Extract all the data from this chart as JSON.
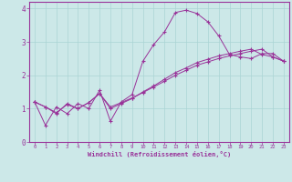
{
  "xlabel": "Windchill (Refroidissement éolien,°C)",
  "xlim": [
    -0.5,
    23.5
  ],
  "ylim": [
    0,
    4.2
  ],
  "yticks": [
    0,
    1,
    2,
    3,
    4
  ],
  "xticks": [
    0,
    1,
    2,
    3,
    4,
    5,
    6,
    7,
    8,
    9,
    10,
    11,
    12,
    13,
    14,
    15,
    16,
    17,
    18,
    19,
    20,
    21,
    22,
    23
  ],
  "bg_color": "#cce8e8",
  "line_color": "#993399",
  "grid_color": "#aad4d4",
  "line1_x": [
    0,
    1,
    2,
    3,
    4,
    5,
    6,
    7,
    8,
    9,
    10,
    11,
    12,
    13,
    14,
    15,
    16,
    17,
    18,
    19,
    20,
    21,
    22,
    23
  ],
  "line1_y": [
    1.2,
    0.5,
    1.05,
    0.85,
    1.15,
    1.0,
    1.55,
    0.62,
    1.2,
    1.42,
    2.42,
    2.92,
    3.3,
    3.88,
    3.95,
    3.85,
    3.6,
    3.18,
    2.62,
    2.55,
    2.5,
    2.65,
    2.65,
    2.42
  ],
  "line2_x": [
    0,
    1,
    2,
    3,
    4,
    5,
    6,
    7,
    8,
    9,
    10,
    11,
    12,
    13,
    14,
    15,
    16,
    17,
    18,
    19,
    20,
    21,
    22,
    23
  ],
  "line2_y": [
    1.2,
    1.05,
    0.85,
    1.15,
    1.0,
    1.18,
    1.45,
    1.0,
    1.15,
    1.3,
    1.5,
    1.68,
    1.88,
    2.08,
    2.22,
    2.38,
    2.48,
    2.58,
    2.65,
    2.72,
    2.78,
    2.62,
    2.55,
    2.42
  ],
  "line3_x": [
    0,
    1,
    2,
    3,
    4,
    5,
    6,
    7,
    8,
    9,
    10,
    11,
    12,
    13,
    14,
    15,
    16,
    17,
    18,
    19,
    20,
    21,
    22,
    23
  ],
  "line3_y": [
    1.2,
    1.05,
    0.88,
    1.12,
    1.0,
    1.18,
    1.45,
    1.05,
    1.18,
    1.32,
    1.48,
    1.65,
    1.82,
    2.0,
    2.15,
    2.3,
    2.4,
    2.5,
    2.58,
    2.65,
    2.72,
    2.78,
    2.55,
    2.42
  ]
}
